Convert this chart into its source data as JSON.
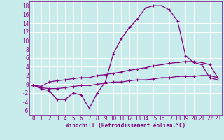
{
  "xlabel": "Windchill (Refroidissement éolien,°C)",
  "bg_color": "#c8ecec",
  "line_color": "#800080",
  "grid_color": "#ffffff",
  "x": [
    0,
    1,
    2,
    3,
    4,
    5,
    6,
    7,
    8,
    9,
    10,
    11,
    12,
    13,
    14,
    15,
    16,
    17,
    18,
    19,
    20,
    21,
    22,
    23
  ],
  "line1": [
    -0.2,
    -1.0,
    -1.5,
    -3.5,
    -3.5,
    -2.0,
    -2.5,
    -5.5,
    -2.0,
    0.5,
    7.0,
    10.5,
    13.0,
    15.0,
    17.5,
    18.0,
    18.0,
    17.0,
    14.5,
    6.5,
    5.0,
    4.5,
    1.5,
    1.0
  ],
  "line2": [
    -0.2,
    -0.5,
    0.5,
    0.8,
    1.0,
    1.3,
    1.5,
    1.5,
    2.0,
    2.2,
    2.5,
    2.8,
    3.2,
    3.5,
    3.8,
    4.2,
    4.5,
    4.8,
    5.0,
    5.2,
    5.2,
    5.0,
    4.5,
    1.5
  ],
  "line3": [
    -0.2,
    -0.8,
    -1.0,
    -1.0,
    -0.8,
    -0.5,
    -0.3,
    -0.3,
    0.0,
    0.2,
    0.5,
    0.5,
    0.8,
    1.0,
    1.0,
    1.2,
    1.5,
    1.5,
    1.8,
    1.8,
    1.8,
    2.0,
    2.0,
    1.5
  ],
  "ylim": [
    -7,
    19
  ],
  "xlim": [
    -0.5,
    23.5
  ],
  "yticks": [
    -6,
    -4,
    -2,
    0,
    2,
    4,
    6,
    8,
    10,
    12,
    14,
    16,
    18
  ],
  "xticks": [
    0,
    1,
    2,
    3,
    4,
    5,
    6,
    7,
    8,
    9,
    10,
    11,
    12,
    13,
    14,
    15,
    16,
    17,
    18,
    19,
    20,
    21,
    22,
    23
  ],
  "xlabel_fontsize": 5.5,
  "tick_fontsize": 5.5,
  "line_width": 0.9,
  "marker_size": 3.5
}
